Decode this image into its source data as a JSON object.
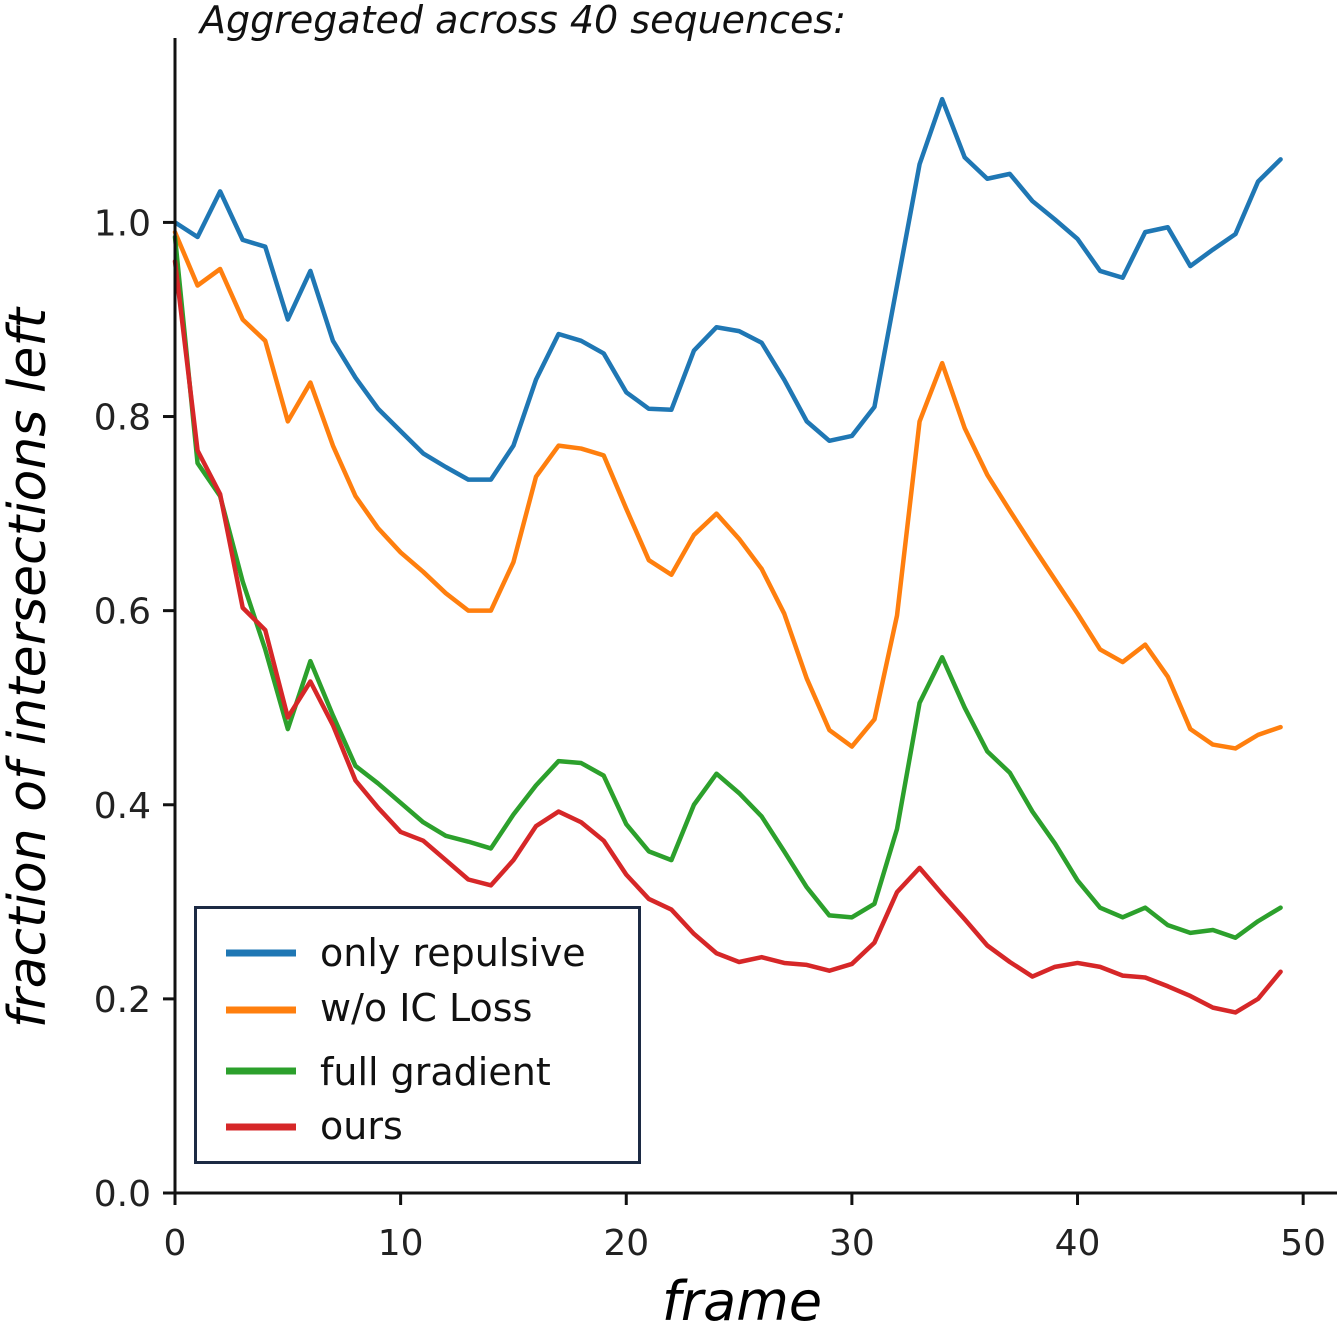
{
  "chart_data": {
    "type": "line",
    "title": "Aggregated across 40 sequences:",
    "xlabel": "frame",
    "ylabel": "fraction of intersections left",
    "xlim": [
      0,
      51.5
    ],
    "ylim": [
      0,
      1.19
    ],
    "xticks": [
      0,
      10,
      20,
      30,
      40,
      50
    ],
    "yticks": [
      0.0,
      0.2,
      0.4,
      0.6,
      0.8,
      1.0
    ],
    "ytick_labels": [
      "0.0",
      "0.2",
      "0.4",
      "0.6",
      "0.8",
      "1.0"
    ],
    "grid": false,
    "legend_position": "bottom-left",
    "x": [
      0,
      1,
      2,
      3,
      4,
      5,
      6,
      7,
      8,
      9,
      10,
      11,
      12,
      13,
      14,
      15,
      16,
      17,
      18,
      19,
      20,
      21,
      22,
      23,
      24,
      25,
      26,
      27,
      28,
      29,
      30,
      31,
      32,
      33,
      34,
      35,
      36,
      37,
      38,
      39,
      40,
      41,
      42,
      43,
      44,
      45,
      46,
      47,
      48,
      49
    ],
    "series": [
      {
        "name": "only repulsive",
        "color": "#1f77b4",
        "values": [
          1.0,
          0.985,
          1.032,
          0.982,
          0.975,
          0.9,
          0.95,
          0.878,
          0.84,
          0.808,
          0.785,
          0.762,
          0.748,
          0.735,
          0.735,
          0.77,
          0.838,
          0.885,
          0.878,
          0.865,
          0.825,
          0.808,
          0.807,
          0.868,
          0.892,
          0.888,
          0.876,
          0.838,
          0.795,
          0.775,
          0.78,
          0.81,
          0.935,
          1.06,
          1.127,
          1.067,
          1.045,
          1.05,
          1.022,
          1.003,
          0.983,
          0.95,
          0.943,
          0.99,
          0.995,
          0.955,
          0.972,
          0.988,
          1.042,
          1.065
        ]
      },
      {
        "name": "w/o IC Loss",
        "color": "#ff7f0e",
        "values": [
          0.99,
          0.935,
          0.952,
          0.9,
          0.878,
          0.795,
          0.835,
          0.77,
          0.718,
          0.685,
          0.66,
          0.64,
          0.618,
          0.6,
          0.6,
          0.65,
          0.738,
          0.77,
          0.767,
          0.76,
          0.705,
          0.652,
          0.637,
          0.678,
          0.7,
          0.674,
          0.643,
          0.597,
          0.53,
          0.477,
          0.46,
          0.488,
          0.595,
          0.795,
          0.855,
          0.788,
          0.74,
          0.703,
          0.667,
          0.632,
          0.597,
          0.56,
          0.547,
          0.565,
          0.532,
          0.478,
          0.462,
          0.458,
          0.472,
          0.48
        ]
      },
      {
        "name": "full gradient",
        "color": "#2ca02c",
        "values": [
          0.985,
          0.752,
          0.718,
          0.63,
          0.56,
          0.478,
          0.548,
          0.492,
          0.44,
          0.422,
          0.402,
          0.382,
          0.368,
          0.362,
          0.355,
          0.39,
          0.42,
          0.445,
          0.443,
          0.43,
          0.38,
          0.352,
          0.343,
          0.4,
          0.432,
          0.412,
          0.388,
          0.352,
          0.315,
          0.286,
          0.284,
          0.298,
          0.375,
          0.505,
          0.552,
          0.5,
          0.455,
          0.433,
          0.393,
          0.36,
          0.322,
          0.294,
          0.284,
          0.294,
          0.276,
          0.268,
          0.271,
          0.263,
          0.28,
          0.294
        ]
      },
      {
        "name": "ours",
        "color": "#d62728",
        "values": [
          0.96,
          0.765,
          0.72,
          0.603,
          0.58,
          0.49,
          0.527,
          0.482,
          0.425,
          0.397,
          0.372,
          0.363,
          0.343,
          0.323,
          0.317,
          0.343,
          0.378,
          0.393,
          0.382,
          0.363,
          0.328,
          0.303,
          0.292,
          0.267,
          0.247,
          0.238,
          0.243,
          0.237,
          0.235,
          0.229,
          0.236,
          0.258,
          0.31,
          0.335,
          0.308,
          0.282,
          0.255,
          0.238,
          0.223,
          0.233,
          0.237,
          0.233,
          0.224,
          0.222,
          0.213,
          0.203,
          0.191,
          0.186,
          0.2,
          0.228
        ]
      }
    ]
  }
}
